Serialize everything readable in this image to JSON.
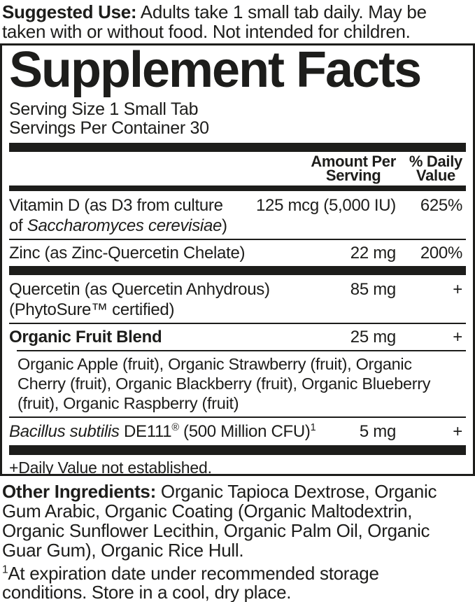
{
  "colors": {
    "text": "#1d1d1b",
    "background": "#ffffff"
  },
  "suggested_use": {
    "label": "Suggested Use:",
    "text": " Adults take 1 small tab daily. May be taken with or without food. Not intended for children."
  },
  "panel": {
    "title": "Supplement Facts",
    "serving_size": "Serving Size 1 Small Tab",
    "servings_per_container": "Servings Per Container 30",
    "header": {
      "amount_line1": "Amount Per",
      "amount_line2": "Serving",
      "dv_line1": "% Daily",
      "dv_line2": "Value"
    },
    "rows": {
      "vitamin_d": {
        "name_line1": "Vitamin D (as D3 from culture",
        "name_line2_pre": "of ",
        "name_line2_italic": "Saccharomyces cerevisiae",
        "name_line2_post": ")",
        "amount": "125 mcg (5,000 IU)",
        "dv": "625%"
      },
      "zinc": {
        "name": "Zinc (as Zinc-Quercetin Chelate)",
        "amount": "22 mg",
        "dv": "200%"
      },
      "quercetin": {
        "name_line1": "Quercetin (as Quercetin Anhydrous)",
        "name_line2": "(PhytoSure™ certified)",
        "amount": "85 mg",
        "dv": "+"
      },
      "fruit_blend": {
        "name": "Organic Fruit Blend",
        "amount": "25 mg",
        "dv": "+",
        "sub_ingredients": "Organic Apple (fruit), Organic Strawberry (fruit), Organic Cherry (fruit), Organic Blackberry (fruit), Organic Blueberry (fruit), Organic Raspberry (fruit)"
      },
      "bacillus": {
        "name_italic": "Bacillus subtilis",
        "name_mid": " DE111",
        "reg_mark": "®",
        "name_end": " (500 Million CFU)",
        "footnote_ref": "1",
        "amount": "5 mg",
        "dv": "+"
      }
    },
    "dv_footnote": "+Daily Value not established."
  },
  "other_ingredients": {
    "label": "Other Ingredients:",
    "text": " Organic Tapioca Dextrose, Organic Gum Arabic, Organic Coating (Organic Maltodextrin, Organic Sunflower Lecithin, Organic Palm Oil, Organic Guar Gum), Organic Rice Hull."
  },
  "storage_note": {
    "footnote_ref": "1",
    "text": "At expiration date under recommended storage conditions. Store in a cool, dry place."
  }
}
